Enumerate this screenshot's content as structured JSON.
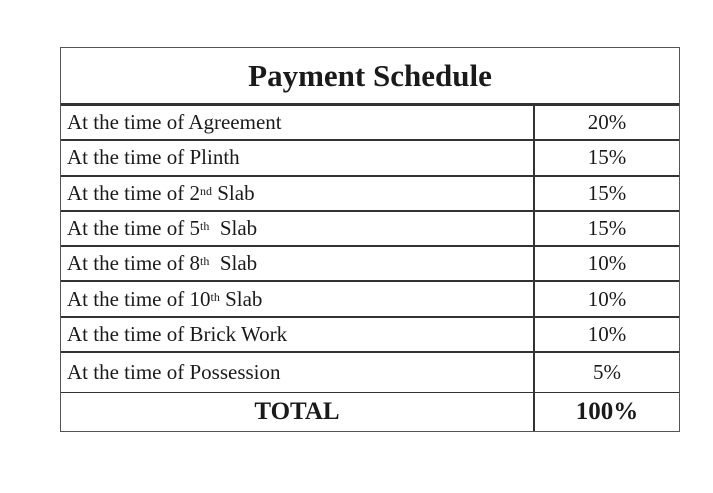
{
  "title": "Payment Schedule",
  "rows": [
    {
      "prefix": "At the time of Agreement",
      "sup": "",
      "suffix": "",
      "value": "20%"
    },
    {
      "prefix": "At the time of Plinth",
      "sup": "",
      "suffix": "",
      "value": "15%"
    },
    {
      "prefix": "At the time of 2",
      "sup": "nd",
      "suffix": " Slab",
      "value": "15%"
    },
    {
      "prefix": "At the time of 5",
      "sup": "th",
      "suffix": "  Slab",
      "value": "15%"
    },
    {
      "prefix": "At the time of 8",
      "sup": "th",
      "suffix": "  Slab",
      "value": "10%"
    },
    {
      "prefix": "At the time of 10",
      "sup": "th",
      "suffix": " Slab",
      "value": "10%"
    },
    {
      "prefix": "At the time of Brick Work",
      "sup": "",
      "suffix": "",
      "value": "10%"
    },
    {
      "prefix": "At the time of Possession",
      "sup": "",
      "suffix": "",
      "value": "5%"
    }
  ],
  "total": {
    "label": "TOTAL",
    "value": "100%"
  }
}
